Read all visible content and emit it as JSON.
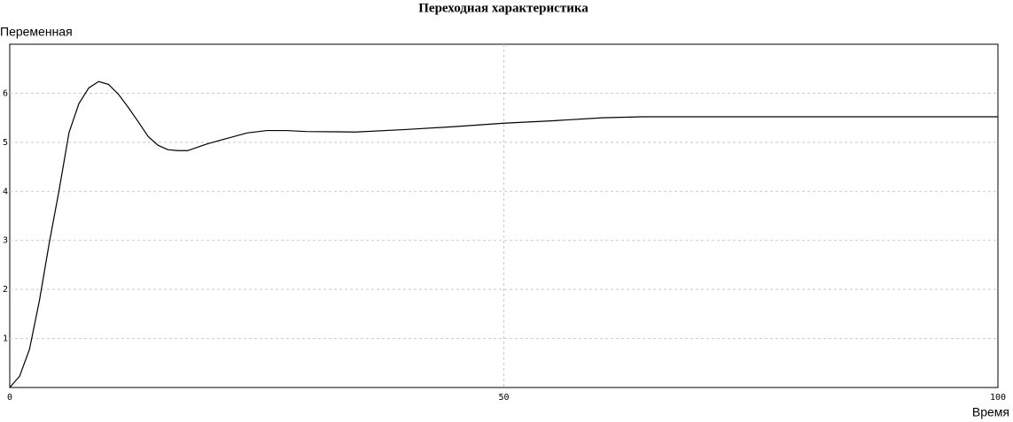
{
  "chart_data": {
    "type": "line",
    "title": "Переходная характеристика",
    "x_label": "Время",
    "y_label": "Переменная",
    "x": [
      0,
      1,
      2,
      3,
      4,
      5,
      6,
      7,
      8,
      9,
      10,
      11,
      12,
      13,
      14,
      15,
      16,
      17,
      18,
      19,
      20,
      22,
      24,
      26,
      28,
      30,
      35,
      40,
      45,
      50,
      55,
      60,
      64,
      70,
      80,
      90,
      100
    ],
    "series": [
      {
        "color": "#000000",
        "values": [
          0,
          0.23,
          0.78,
          1.77,
          2.95,
          4.03,
          5.2,
          5.79,
          6.11,
          6.24,
          6.18,
          5.98,
          5.71,
          5.42,
          5.12,
          4.94,
          4.85,
          4.83,
          4.83,
          4.9,
          4.97,
          5.08,
          5.19,
          5.24,
          5.24,
          5.22,
          5.21,
          5.26,
          5.32,
          5.39,
          5.44,
          5.5,
          5.52,
          5.52,
          5.52,
          5.52,
          5.52
        ]
      }
    ],
    "xlim": [
      0,
      100
    ],
    "ylim": [
      0,
      7
    ],
    "xticks": [
      0,
      50,
      100
    ],
    "yticks": [
      1,
      2,
      3,
      4,
      5,
      6
    ],
    "grid": true
  }
}
